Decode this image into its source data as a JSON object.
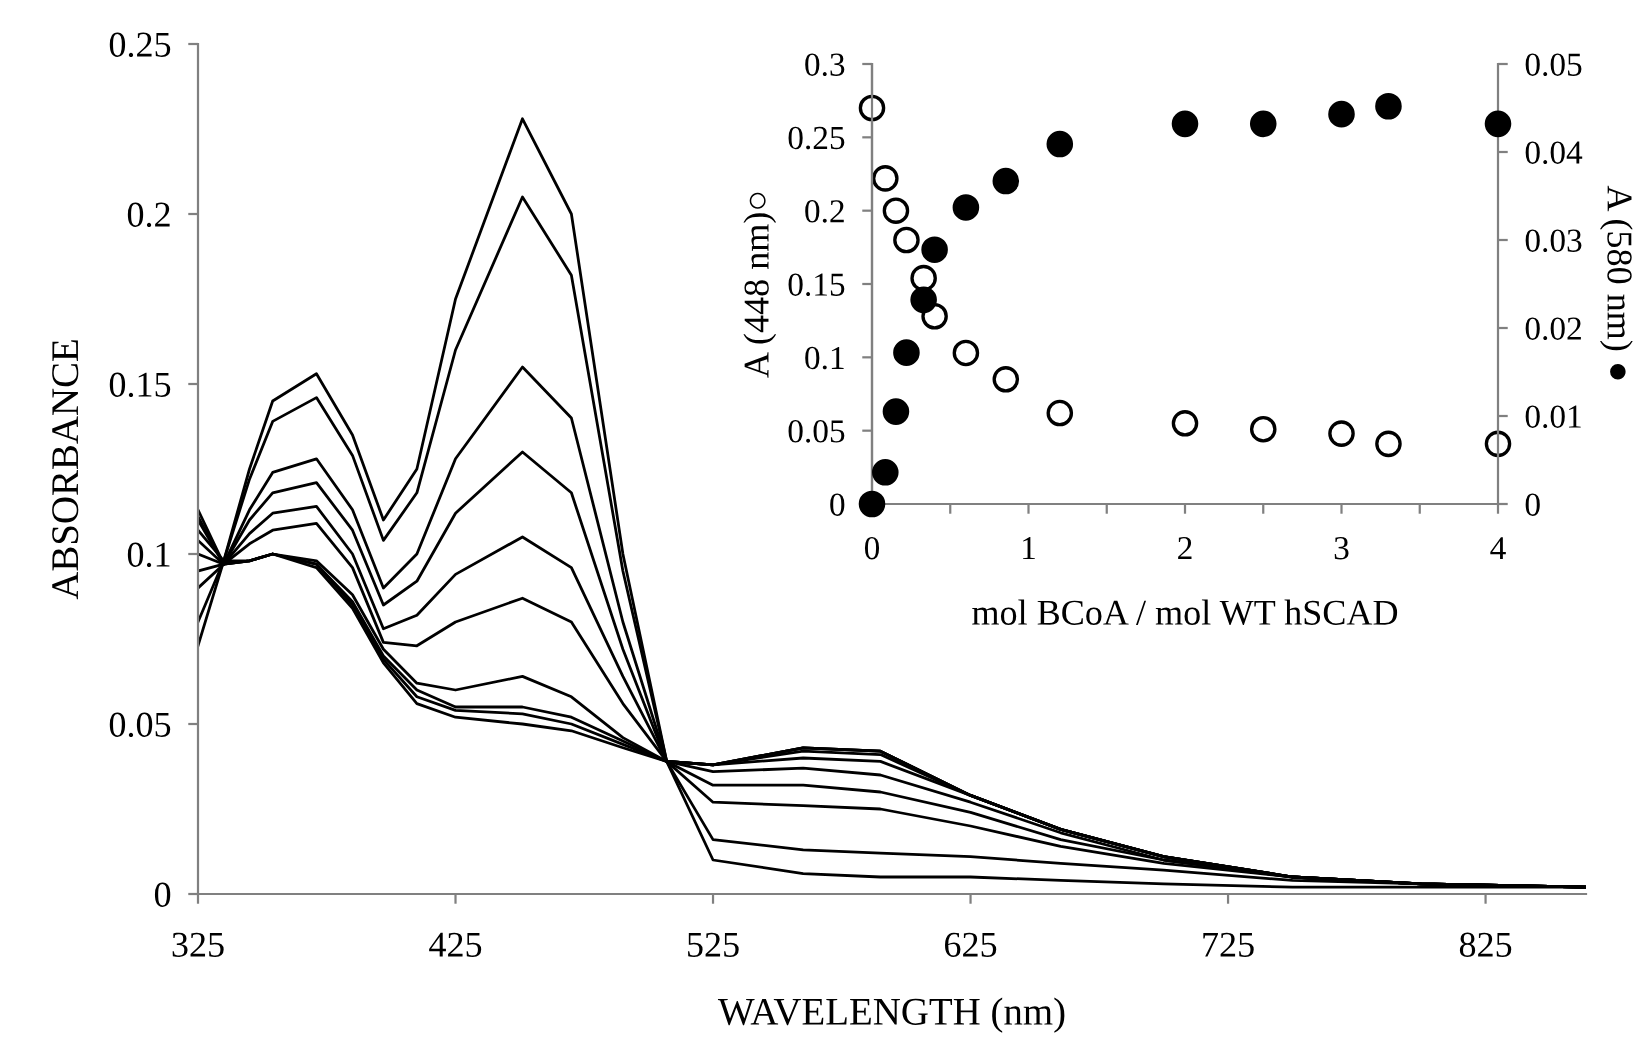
{
  "chart_data": [
    {
      "type": "line",
      "xlabel": "WAVELENGTH (nm)",
      "ylabel": "ABSORBANCE",
      "xlim": [
        325,
        864
      ],
      "ylim": [
        0,
        0.25
      ],
      "xticks": [
        325,
        425,
        525,
        625,
        725,
        825
      ],
      "yticks": [
        0,
        0.05,
        0.1,
        0.15,
        0.2,
        0.25
      ],
      "grid": false,
      "legend": false,
      "marker": "none",
      "line_style": "solid",
      "x": [
        325,
        335,
        345,
        354,
        371,
        385,
        397,
        410,
        425,
        451,
        470,
        490,
        507,
        525,
        560,
        590,
        625,
        660,
        700,
        750,
        800,
        864
      ],
      "series": [
        {
          "color": "#000000",
          "values": [
            0.073,
            0.098,
            0.125,
            0.145,
            0.153,
            0.135,
            0.11,
            0.125,
            0.175,
            0.228,
            0.2,
            0.1,
            0.039,
            0.01,
            0.006,
            0.005,
            0.005,
            0.004,
            0.003,
            0.002,
            0.002,
            0.002
          ]
        },
        {
          "color": "#000000",
          "values": [
            0.08,
            0.098,
            0.122,
            0.139,
            0.146,
            0.129,
            0.104,
            0.118,
            0.16,
            0.205,
            0.182,
            0.095,
            0.039,
            0.016,
            0.013,
            0.012,
            0.011,
            0.009,
            0.007,
            0.004,
            0.003,
            0.002
          ]
        },
        {
          "color": "#000000",
          "values": [
            0.09,
            0.097,
            0.113,
            0.124,
            0.128,
            0.113,
            0.09,
            0.1,
            0.128,
            0.155,
            0.14,
            0.08,
            0.039,
            0.027,
            0.026,
            0.025,
            0.02,
            0.014,
            0.009,
            0.005,
            0.003,
            0.002
          ]
        },
        {
          "color": "#000000",
          "values": [
            0.095,
            0.097,
            0.11,
            0.118,
            0.121,
            0.107,
            0.085,
            0.092,
            0.112,
            0.13,
            0.118,
            0.072,
            0.039,
            0.032,
            0.032,
            0.03,
            0.024,
            0.016,
            0.01,
            0.005,
            0.003,
            0.002
          ]
        },
        {
          "color": "#000000",
          "values": [
            0.1,
            0.097,
            0.106,
            0.112,
            0.114,
            0.1,
            0.078,
            0.082,
            0.094,
            0.105,
            0.096,
            0.064,
            0.039,
            0.036,
            0.037,
            0.035,
            0.027,
            0.018,
            0.01,
            0.005,
            0.003,
            0.002
          ]
        },
        {
          "color": "#000000",
          "values": [
            0.104,
            0.097,
            0.103,
            0.107,
            0.109,
            0.096,
            0.074,
            0.073,
            0.08,
            0.087,
            0.08,
            0.056,
            0.039,
            0.038,
            0.04,
            0.039,
            0.029,
            0.019,
            0.011,
            0.005,
            0.003,
            0.002
          ]
        },
        {
          "color": "#000000",
          "values": [
            0.107,
            0.098,
            0.098,
            0.1,
            0.098,
            0.088,
            0.072,
            0.062,
            0.06,
            0.064,
            0.058,
            0.046,
            0.039,
            0.038,
            0.042,
            0.041,
            0.029,
            0.019,
            0.011,
            0.005,
            0.003,
            0.002
          ]
        },
        {
          "color": "#000000",
          "values": [
            0.11,
            0.097,
            0.098,
            0.1,
            0.097,
            0.086,
            0.07,
            0.06,
            0.055,
            0.055,
            0.052,
            0.045,
            0.039,
            0.038,
            0.043,
            0.042,
            0.029,
            0.019,
            0.011,
            0.005,
            0.003,
            0.002
          ]
        },
        {
          "color": "#000000",
          "values": [
            0.111,
            0.097,
            0.098,
            0.1,
            0.097,
            0.085,
            0.069,
            0.058,
            0.054,
            0.053,
            0.05,
            0.044,
            0.039,
            0.038,
            0.043,
            0.042,
            0.029,
            0.019,
            0.011,
            0.005,
            0.003,
            0.002
          ]
        },
        {
          "color": "#000000",
          "values": [
            0.113,
            0.097,
            0.098,
            0.1,
            0.096,
            0.084,
            0.068,
            0.056,
            0.052,
            0.05,
            0.048,
            0.043,
            0.039,
            0.038,
            0.043,
            0.042,
            0.029,
            0.019,
            0.011,
            0.005,
            0.003,
            0.002
          ]
        }
      ]
    },
    {
      "type": "scatter",
      "xlabel": "mol BCoA / mol WT hSCAD",
      "ylabel": "A (448 nm)○",
      "y2label": "A (580 nm) ●",
      "xlim": [
        0,
        4
      ],
      "ylim": [
        0,
        0.3
      ],
      "y2lim": [
        0,
        0.05
      ],
      "xticks": [
        0,
        {
          "value": 0.5,
          "label": null
        },
        1,
        {
          "value": 1.5,
          "label": null
        },
        2,
        {
          "value": 2.5,
          "label": null
        },
        3,
        {
          "value": 3.5,
          "label": null
        },
        4
      ],
      "yticks": [
        0,
        0.05,
        0.1,
        0.15,
        0.2,
        0.25,
        0.3
      ],
      "y2ticks": [
        0,
        0.01,
        0.02,
        0.03,
        0.04,
        0.05
      ],
      "grid": false,
      "legend": false,
      "marker": "circle",
      "x": [
        0,
        0.085,
        0.153,
        0.22,
        0.33,
        0.4,
        0.6,
        0.855,
        1.2,
        2,
        2.5,
        3,
        3.3,
        4
      ],
      "series": [
        {
          "color": "#ffffff",
          "values": [
            0.27,
            0.222,
            0.2,
            0.18,
            0.154,
            0.128,
            0.103,
            0.085,
            0.062,
            0.055,
            0.051,
            0.048,
            0.041,
            0.041
          ]
        },
        {
          "color": "#000000",
          "axis": "y2",
          "values": [
            0,
            0.0036,
            0.0105,
            0.0172,
            0.0232,
            0.0289,
            0.0337,
            0.0367,
            0.0409,
            0.0432,
            0.0432,
            0.0443,
            0.0452,
            0.0432
          ]
        }
      ]
    }
  ]
}
